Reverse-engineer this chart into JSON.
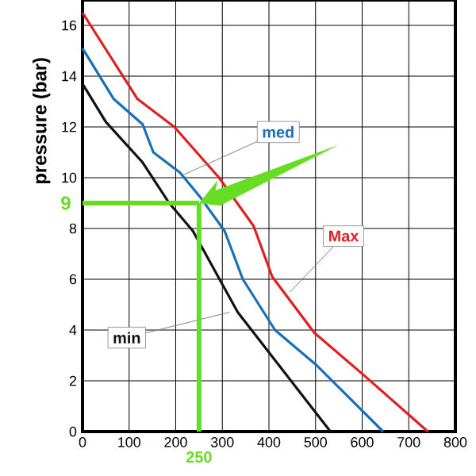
{
  "chart_data": {
    "type": "line",
    "ylabel": "pressure (bar)",
    "xlim": [
      0,
      800
    ],
    "ylim": [
      0,
      17
    ],
    "xticks": [
      0,
      100,
      200,
      300,
      400,
      500,
      600,
      700,
      800
    ],
    "yticks": [
      0,
      2,
      4,
      6,
      8,
      10,
      12,
      14,
      16
    ],
    "grid": true,
    "series": [
      {
        "name": "Max",
        "color": "#e02020",
        "x": [
          0,
          118,
          197,
          293,
          367,
          407,
          497,
          605,
          741
        ],
        "values": [
          16.5,
          13.1,
          12.0,
          10.0,
          8.1,
          6.1,
          3.9,
          2.2,
          0
        ]
      },
      {
        "name": "med",
        "color": "#1a70b8",
        "x": [
          0,
          67,
          129,
          152,
          209,
          254,
          305,
          344,
          413,
          503,
          645
        ],
        "values": [
          15.1,
          13.1,
          12.1,
          11.0,
          10.2,
          9.2,
          7.9,
          6.0,
          4.0,
          2.6,
          0
        ]
      },
      {
        "name": "min",
        "color": "#111111",
        "x": [
          0,
          50,
          129,
          186,
          237,
          333,
          532
        ],
        "values": [
          13.7,
          12.2,
          10.6,
          9.0,
          7.9,
          4.7,
          0
        ]
      }
    ],
    "ref_lines": [
      {
        "axis": "x",
        "value": 250,
        "label": "250",
        "color": "#66dd22"
      },
      {
        "axis": "y",
        "value": 9,
        "label": "9",
        "color": "#66dd22"
      }
    ]
  }
}
